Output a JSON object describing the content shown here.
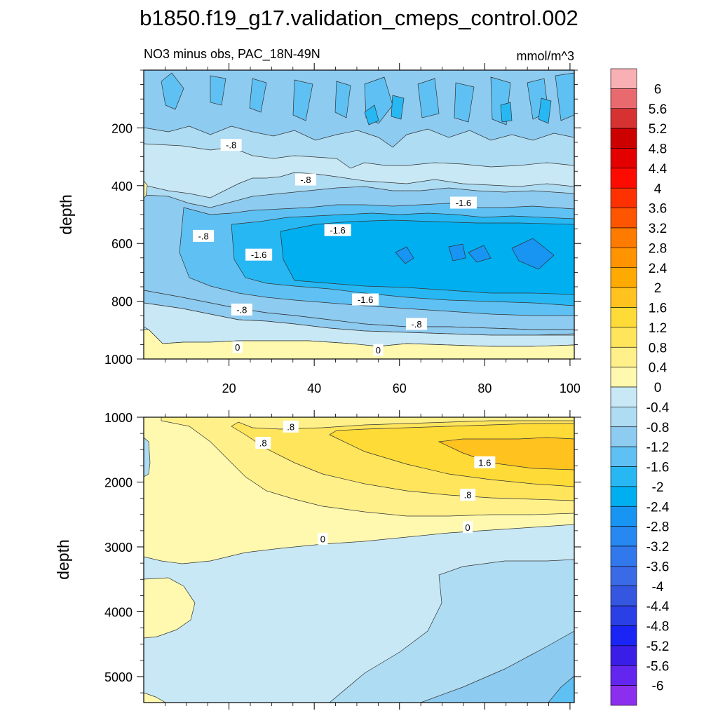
{
  "page": {
    "title": "b1850.f19_g17.validation_cmeps_control.002"
  },
  "chart_data": [
    {
      "type": "contour",
      "panel": "upper",
      "title": "NO3 minus obs, PAC_18N-49N",
      "units": "mmol/m^3",
      "xlabel": "",
      "ylabel": "depth",
      "xlim": [
        0,
        101
      ],
      "ylim": [
        1000,
        0
      ],
      "x_ticks": [
        20,
        40,
        60,
        80,
        100
      ],
      "y_ticks": [
        200,
        400,
        600,
        800,
        1000
      ],
      "contour_labels": [
        {
          "text": "-.8",
          "x": 20.5,
          "y": 260
        },
        {
          "text": "-.8",
          "x": 38,
          "y": 380
        },
        {
          "text": "-1.6",
          "x": 75,
          "y": 460
        },
        {
          "text": "-1.6",
          "x": 45.5,
          "y": 555
        },
        {
          "text": "-.8",
          "x": 14,
          "y": 575
        },
        {
          "text": "-1.6",
          "x": 27,
          "y": 640
        },
        {
          "text": "-1.6",
          "x": 52,
          "y": 795
        },
        {
          "text": "-.8",
          "x": 23,
          "y": 830
        },
        {
          "text": "-.8",
          "x": 64,
          "y": 880
        },
        {
          "text": "0",
          "x": 22,
          "y": 960
        },
        {
          "text": "0",
          "x": 55,
          "y": 970
        }
      ]
    },
    {
      "type": "contour",
      "panel": "lower",
      "title": "",
      "xlabel": "",
      "ylabel": "depth",
      "xlim": [
        0,
        101
      ],
      "ylim": [
        5400,
        1000
      ],
      "x_ticks": [
        20,
        40,
        60,
        80,
        100
      ],
      "y_ticks": [
        1000,
        2000,
        3000,
        4000,
        5000
      ],
      "contour_labels": [
        {
          "text": ".8",
          "x": 34.5,
          "y": 1150
        },
        {
          "text": ".8",
          "x": 28,
          "y": 1400
        },
        {
          "text": "1.6",
          "x": 80,
          "y": 1700
        },
        {
          "text": ".8",
          "x": 76,
          "y": 2200
        },
        {
          "text": "0",
          "x": 76,
          "y": 2700
        },
        {
          "text": "0",
          "x": 42,
          "y": 2880
        }
      ]
    }
  ],
  "colorbar": {
    "labels": [
      "6",
      "5.6",
      "5.2",
      "4.8",
      "4.4",
      "4",
      "3.6",
      "3.2",
      "2.8",
      "2.4",
      "2",
      "1.6",
      "1.2",
      "0.8",
      "0.4",
      "0",
      "-0.4",
      "-0.8",
      "-1.2",
      "-1.6",
      "-2",
      "-2.4",
      "-2.8",
      "-3.2",
      "-3.6",
      "-4",
      "-4.4",
      "-4.8",
      "-5.2",
      "-5.6",
      "-6"
    ],
    "colors": [
      "#f9b0b4",
      "#e96a6e",
      "#d63232",
      "#cd0000",
      "#e50000",
      "#fe0b00",
      "#fe3200",
      "#fe5500",
      "#fe7b00",
      "#ff9300",
      "#ffaa00",
      "#ffc21f",
      "#ffdb37",
      "#ffe55c",
      "#fff08a",
      "#fff9b0",
      "#c8e8f5",
      "#aedcf3",
      "#8ecbf0",
      "#5fc1f3",
      "#27b8f3",
      "#00aff0",
      "#1894f2",
      "#2688f0",
      "#3178ec",
      "#3a6ae6",
      "#3456e0",
      "#2a40e6",
      "#1a24f5",
      "#3a1ee8",
      "#6226ee",
      "#8b2eee"
    ]
  },
  "fills": {
    "pos_0_0p4": "#fff9b0",
    "pos_0p4_0p8": "#fff08a",
    "pos_0p8_1p2": "#ffe55c",
    "pos_1p2_1p6": "#ffdb37",
    "pos_1p6_2": "#ffc21f",
    "neg_0_m0p4": "#c8e8f5",
    "neg_m0p4_m0p8": "#aedcf3",
    "neg_m0p8_m1p2": "#8ecbf0",
    "neg_m1p2_m1p6": "#5fc1f3",
    "neg_m1p6_m2": "#27b8f3",
    "neg_m2_m2p4": "#00aff0",
    "neg_m2p4_m2p8": "#1894f2"
  }
}
